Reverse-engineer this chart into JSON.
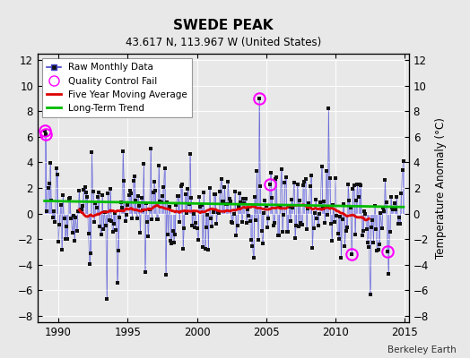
{
  "title": "SWEDE PEAK",
  "subtitle": "43.617 N, 113.967 W (United States)",
  "ylabel": "Temperature Anomaly (°C)",
  "credit": "Berkeley Earth",
  "xlim": [
    1988.5,
    2015.3
  ],
  "ylim": [
    -8.5,
    12.5
  ],
  "yticks": [
    -8,
    -6,
    -4,
    -2,
    0,
    2,
    4,
    6,
    8,
    10,
    12
  ],
  "xticks": [
    1990,
    1995,
    2000,
    2005,
    2010,
    2015
  ],
  "raw_color": "#4444cc",
  "raw_line_color": "#8888ee",
  "avg_color": "#dd0000",
  "trend_color": "#00bb00",
  "qc_color": "#ff00ff",
  "dot_color": "#111111",
  "background": "#e8e8e8",
  "plot_bg": "#e8e8e8"
}
